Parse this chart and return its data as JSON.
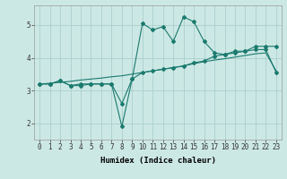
{
  "xlabel": "Humidex (Indice chaleur)",
  "background_color": "#cce8e5",
  "grid_color": "#aacfcc",
  "line_color": "#1a7a6e",
  "x_values": [
    0,
    1,
    2,
    3,
    4,
    5,
    6,
    7,
    8,
    9,
    10,
    11,
    12,
    13,
    14,
    15,
    16,
    17,
    18,
    19,
    20,
    21,
    22,
    23
  ],
  "curve1": [
    3.2,
    3.2,
    3.3,
    3.15,
    3.2,
    3.2,
    3.2,
    3.2,
    1.9,
    3.35,
    5.05,
    4.85,
    4.95,
    4.5,
    5.25,
    5.1,
    4.5,
    4.15,
    4.1,
    4.2,
    4.2,
    4.35,
    4.35,
    4.35
  ],
  "curve2": [
    3.2,
    3.2,
    3.3,
    3.15,
    3.15,
    3.2,
    3.2,
    3.2,
    2.6,
    3.35,
    3.55,
    3.6,
    3.65,
    3.7,
    3.75,
    3.85,
    3.9,
    4.05,
    4.1,
    4.15,
    4.2,
    4.25,
    4.25,
    3.55
  ],
  "curve3": [
    3.2,
    3.22,
    3.25,
    3.28,
    3.32,
    3.35,
    3.38,
    3.42,
    3.45,
    3.5,
    3.55,
    3.6,
    3.65,
    3.7,
    3.75,
    3.82,
    3.88,
    3.93,
    3.97,
    4.02,
    4.07,
    4.12,
    4.15,
    3.6
  ],
  "ylim": [
    1.5,
    5.6
  ],
  "xlim": [
    -0.5,
    23.5
  ],
  "yticks": [
    2,
    3,
    4,
    5
  ],
  "xticks": [
    0,
    1,
    2,
    3,
    4,
    5,
    6,
    7,
    8,
    9,
    10,
    11,
    12,
    13,
    14,
    15,
    16,
    17,
    18,
    19,
    20,
    21,
    22,
    23
  ],
  "tick_fontsize": 5.5,
  "label_fontsize": 6.5,
  "figsize": [
    3.2,
    2.0
  ],
  "dpi": 100
}
